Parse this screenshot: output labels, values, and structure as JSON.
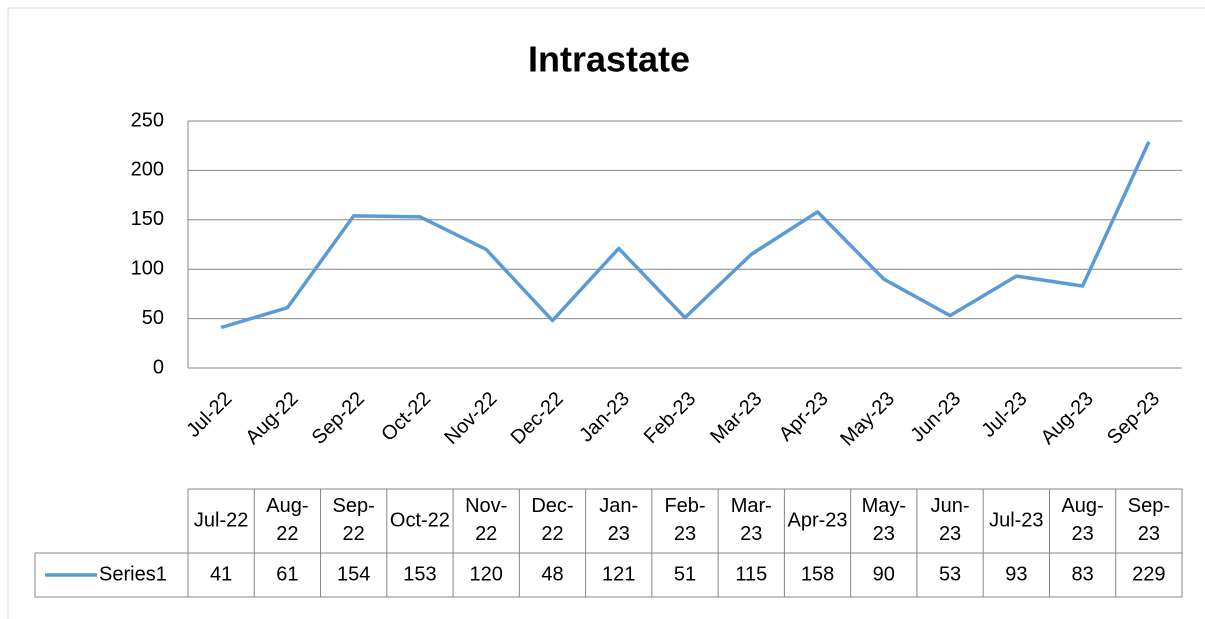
{
  "chart_data": {
    "type": "line",
    "title": "Intrastate",
    "categories": [
      "Jul-22",
      "Aug-22",
      "Sep-22",
      "Oct-22",
      "Nov-22",
      "Dec-22",
      "Jan-23",
      "Feb-23",
      "Mar-23",
      "Apr-23",
      "May-23",
      "Jun-23",
      "Jul-23",
      "Aug-23",
      "Sep-23"
    ],
    "series": [
      {
        "name": "Series1",
        "color": "#5b9bd5",
        "values": [
          41,
          61,
          154,
          153,
          120,
          48,
          121,
          51,
          115,
          158,
          90,
          53,
          93,
          83,
          229
        ]
      }
    ],
    "ylim": [
      0,
      250
    ],
    "yticks": [
      0,
      50,
      100,
      150,
      200,
      250
    ],
    "grid": true
  }
}
